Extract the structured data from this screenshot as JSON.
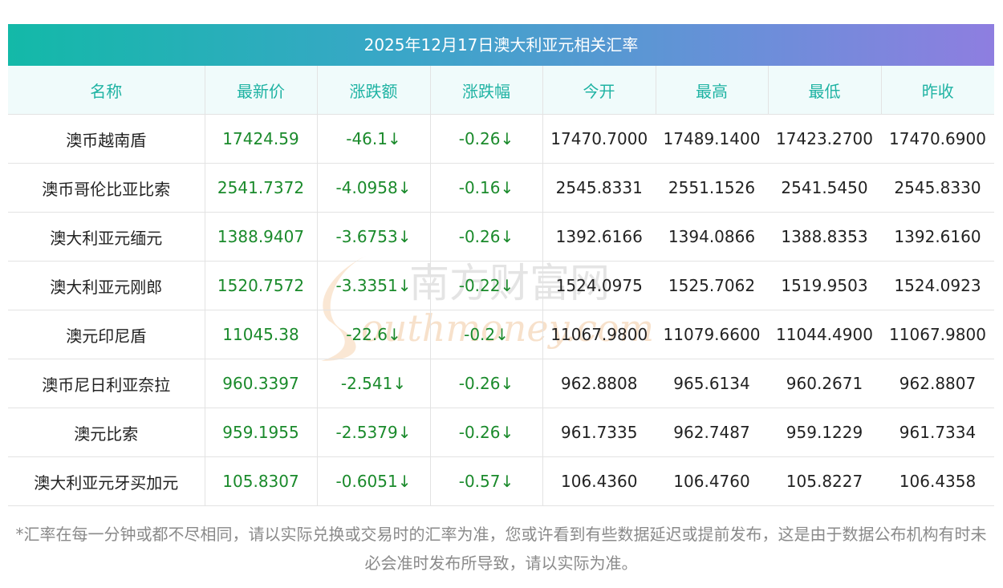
{
  "title": "2025年12月17日澳大利亚元相关汇率",
  "headers": [
    "名称",
    "最新价",
    "涨跌额",
    "涨跌幅",
    "今开",
    "最高",
    "最低",
    "昨收"
  ],
  "rows": [
    {
      "name": "澳币越南盾",
      "latest": "17424.59",
      "change": "-46.1↓",
      "pct": "-0.26↓",
      "open": "17470.7000",
      "high": "17489.1400",
      "low": "17423.2700",
      "prev": "17470.6900"
    },
    {
      "name": "澳币哥伦比亚比索",
      "latest": "2541.7372",
      "change": "-4.0958↓",
      "pct": "-0.16↓",
      "open": "2545.8331",
      "high": "2551.1526",
      "low": "2541.5450",
      "prev": "2545.8330"
    },
    {
      "name": "澳大利亚元缅元",
      "latest": "1388.9407",
      "change": "-3.6753↓",
      "pct": "-0.26↓",
      "open": "1392.6166",
      "high": "1394.0866",
      "low": "1388.8353",
      "prev": "1392.6160"
    },
    {
      "name": "澳大利亚元刚郎",
      "latest": "1520.7572",
      "change": "-3.3351↓",
      "pct": "-0.22↓",
      "open": "1524.0975",
      "high": "1525.7062",
      "low": "1519.9503",
      "prev": "1524.0923"
    },
    {
      "name": "澳元印尼盾",
      "latest": "11045.38",
      "change": "-22.6↓",
      "pct": "-0.2↓",
      "open": "11067.9800",
      "high": "11079.6600",
      "low": "11044.4900",
      "prev": "11067.9800"
    },
    {
      "name": "澳币尼日利亚奈拉",
      "latest": "960.3397",
      "change": "-2.541↓",
      "pct": "-0.26↓",
      "open": "962.8808",
      "high": "965.6134",
      "low": "960.2671",
      "prev": "962.8807"
    },
    {
      "name": "澳元比索",
      "latest": "959.1955",
      "change": "-2.5379↓",
      "pct": "-0.26↓",
      "open": "961.7335",
      "high": "962.7487",
      "low": "959.1229",
      "prev": "961.7334"
    },
    {
      "name": "澳大利亚元牙买加元",
      "latest": "105.8307",
      "change": "-0.6051↓",
      "pct": "-0.57↓",
      "open": "106.4360",
      "high": "106.4760",
      "low": "105.8227",
      "prev": "106.4358"
    }
  ],
  "note": "*汇率在每一分钟或都不尽相同，请以实际兑换或交易时的汇率为准，您或许看到有些数据延迟或提前发布，这是由于数据公布机构有时未必会准时发布所导致，请以实际为准。",
  "watermark": {
    "cn": "南方财富网",
    "en": "outhmoney.com"
  },
  "colors": {
    "header_text": "#1fb3a3",
    "positive_green": "#1a8a2b",
    "note_text": "#8a8a8a"
  }
}
